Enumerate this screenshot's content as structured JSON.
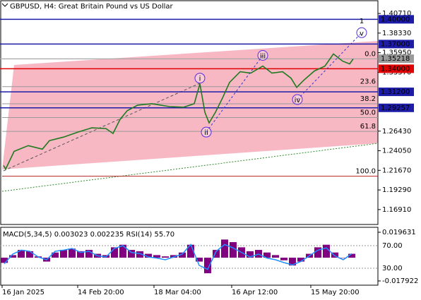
{
  "chart_data": {
    "type": "line",
    "title": "GBPUSD, H4:  Great Britain Pound vs US Dollar",
    "x": [
      5,
      8,
      20,
      40,
      60,
      70,
      90,
      110,
      130,
      150,
      160,
      170,
      180,
      195,
      215,
      240,
      260,
      275,
      283,
      290,
      296,
      305,
      315,
      325,
      340,
      355,
      372,
      385,
      400,
      412,
      420,
      430,
      445,
      460,
      472,
      485,
      495,
      500
    ],
    "values": [
      1.2226,
      1.2183,
      1.2398,
      1.2467,
      1.2424,
      1.2528,
      1.2571,
      1.2631,
      1.2683,
      1.2674,
      1.2614,
      1.2786,
      1.289,
      1.2959,
      1.2976,
      1.2941,
      1.2933,
      1.2976,
      1.3217,
      1.2872,
      1.2743,
      1.2872,
      1.3045,
      1.3235,
      1.3364,
      1.3347,
      1.3433,
      1.3347,
      1.3364,
      1.3286,
      1.3174,
      1.326,
      1.3373,
      1.3433,
      1.358,
      1.3493,
      1.3459,
      1.3519
    ],
    "color": "#1f7a1f",
    "xlim": [
      0,
      535
    ],
    "xticks": [
      {
        "value": 3,
        "label": "16 Jan 2025"
      },
      {
        "value": 110,
        "label": "14 Feb 20:00"
      },
      {
        "value": 218,
        "label": "18 Mar 04:00"
      },
      {
        "value": 328,
        "label": "16 Apr 12:00"
      },
      {
        "value": 440,
        "label": "15 May 20:00"
      }
    ],
    "ylim": [
      1.151,
      1.4226
    ],
    "yticks": [
      {
        "value": 1.4071,
        "label": "1.40710"
      },
      {
        "value": 1.3833,
        "label": "1.38330"
      },
      {
        "value": 1.3595,
        "label": "1.35950"
      },
      {
        "value": 1.3357,
        "label": "1.33570"
      },
      {
        "value": 1.2643,
        "label": "1.26430"
      },
      {
        "value": 1.2405,
        "label": "1.24050"
      },
      {
        "value": 1.2167,
        "label": "1.21670"
      },
      {
        "value": 1.1929,
        "label": "1.19290"
      },
      {
        "value": 1.1691,
        "label": "1.16910"
      }
    ],
    "levels": [
      {
        "price": 1.4,
        "label": "1.40000",
        "color": "#1c1ca8"
      },
      {
        "price": 1.37,
        "label": "1.37000",
        "color": "#1c1ca8"
      },
      {
        "price": 1.34,
        "label": "1.34000",
        "color": "#e00000"
      },
      {
        "price": 1.312,
        "label": "1.31200",
        "color": "#1c1ca8"
      },
      {
        "price": 1.29257,
        "label": "1.29257",
        "color": "#1c1ca8"
      }
    ],
    "current_price": {
      "value": 1.35218,
      "label": "1.35218"
    },
    "fibonacci": [
      {
        "label": "0.0",
        "price": 1.3519
      },
      {
        "label": "23.6",
        "price": 1.3183
      },
      {
        "label": "38.2",
        "price": 1.2975
      },
      {
        "label": "50.0",
        "price": 1.2808
      },
      {
        "label": "61.8",
        "price": 1.264
      },
      {
        "label": "100.0",
        "price": 1.2096
      }
    ],
    "waves": [
      {
        "label": "i",
        "x": 283,
        "price": 1.3286
      },
      {
        "label": "ii",
        "x": 292,
        "price": 1.2631
      },
      {
        "label": "iii",
        "x": 372,
        "price": 1.3562
      },
      {
        "label": "iv",
        "x": 421,
        "price": 1.3027
      },
      {
        "label": "v",
        "x": 512,
        "price": 1.3838
      }
    ],
    "target_label": {
      "label": "1",
      "x": 512,
      "price": 1.3976
    }
  },
  "indicator": {
    "title": "MACD(5,34,5) 0.003023 0.002235 RSI(14) 55.70",
    "x": [
      6,
      18,
      30,
      42,
      54,
      66,
      78,
      90,
      102,
      114,
      126,
      138,
      150,
      162,
      174,
      186,
      198,
      210,
      222,
      234,
      246,
      258,
      270,
      282,
      294,
      306,
      318,
      330,
      342,
      354,
      366,
      378,
      390,
      402,
      414,
      426,
      438,
      450,
      462,
      474,
      486,
      498
    ],
    "macd": [
      -0.004,
      0.002,
      0.006,
      0.005,
      0.001,
      -0.003,
      0.004,
      0.006,
      0.007,
      0.005,
      0.006,
      0.003,
      0.002,
      0.008,
      0.01,
      0.006,
      0.005,
      0.003,
      0.002,
      0.001,
      0.002,
      0.004,
      0.01,
      -0.003,
      -0.012,
      0.006,
      0.014,
      0.012,
      0.008,
      0.005,
      0.006,
      0.004,
      0.002,
      -0.002,
      -0.006,
      -0.003,
      0.003,
      0.008,
      0.01,
      0.004,
      0.0,
      0.003
    ],
    "rsi": [
      38,
      55,
      62,
      60,
      50,
      45,
      60,
      62,
      65,
      58,
      60,
      52,
      50,
      65,
      70,
      58,
      56,
      50,
      48,
      45,
      50,
      55,
      72,
      35,
      28,
      60,
      72,
      66,
      58,
      50,
      55,
      48,
      45,
      40,
      36,
      42,
      52,
      62,
      66,
      52,
      45,
      55.7
    ],
    "macd_color": "#800080",
    "rsi_color": "#1e90ff",
    "ylim": [
      -0.02119,
      0.02344
    ],
    "yticks": [
      {
        "value": 0.019631,
        "label": "0.019631"
      },
      {
        "value": -0.017922,
        "label": "-0.017922"
      }
    ],
    "y2lim": [
      0,
      102.5
    ],
    "y2ticks": [
      {
        "value": 70,
        "label": "70.00"
      },
      {
        "value": 30,
        "label": "30.00"
      }
    ]
  }
}
